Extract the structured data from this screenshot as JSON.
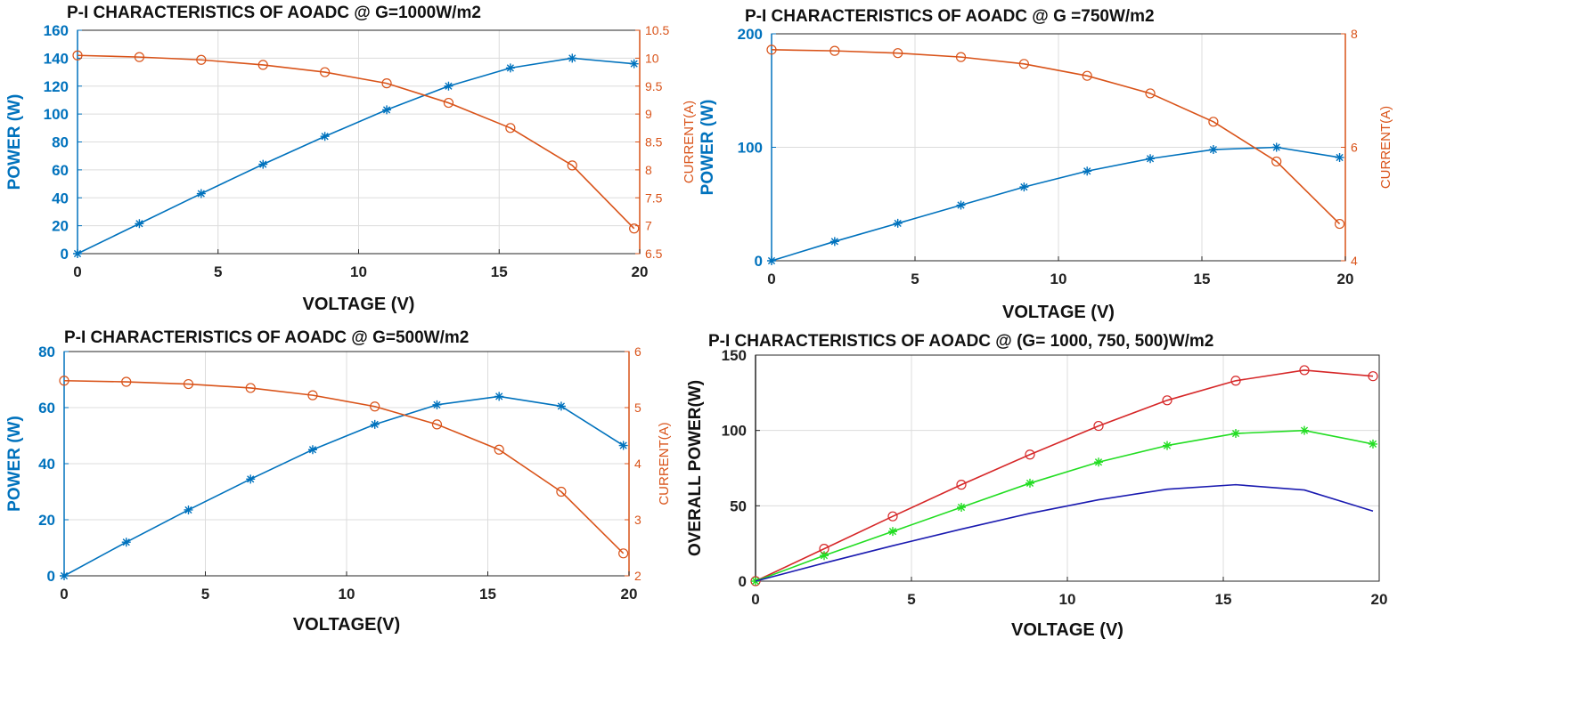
{
  "chart_data": [
    {
      "type": "line",
      "title": "P-I CHARACTERISTICS OF AOADC @ G=1000W/m2",
      "xlabel": "VOLTAGE (V)",
      "ylabel": "POWER (W)",
      "ylabel_right": "CURRENT(A)",
      "xlim": [
        0,
        20
      ],
      "ylim": [
        0,
        160
      ],
      "ylim_right": [
        6.5,
        10.5
      ],
      "xticks": [
        "0",
        "5",
        "10",
        "15",
        "20"
      ],
      "yticks": [
        "0",
        "20",
        "40",
        "60",
        "80",
        "100",
        "120",
        "140",
        "160"
      ],
      "yticks_right": [
        "6.5",
        "7",
        "7.5",
        "8",
        "8.5",
        "9",
        "9.5",
        "10",
        "10.5"
      ],
      "grid": true,
      "x": [
        0,
        2.2,
        4.4,
        6.6,
        8.8,
        11.0,
        13.2,
        15.4,
        17.6,
        19.8
      ],
      "series": [
        {
          "axis": "left",
          "color": "#0072bd",
          "marker": "star",
          "values": [
            0,
            21.5,
            43,
            64,
            84,
            103,
            120,
            133,
            140,
            136
          ]
        },
        {
          "axis": "right",
          "color": "#d95319",
          "marker": "circle",
          "values": [
            10.05,
            10.02,
            9.97,
            9.88,
            9.75,
            9.55,
            9.2,
            8.75,
            8.08,
            6.95
          ]
        }
      ]
    },
    {
      "type": "line",
      "title": "P-I CHARACTERISTICS OF AOADC @ G =750W/m2",
      "xlabel": "VOLTAGE (V)",
      "ylabel": "POWER (W)",
      "ylabel_right": "CURRENT(A)",
      "xlim": [
        0,
        20
      ],
      "ylim": [
        0,
        200
      ],
      "ylim_right": [
        4,
        8
      ],
      "xticks": [
        "0",
        "5",
        "10",
        "15",
        "20"
      ],
      "yticks": [
        "0",
        "100",
        "200"
      ],
      "yticks_right": [
        "4",
        "6",
        "8"
      ],
      "grid": true,
      "x": [
        0,
        2.2,
        4.4,
        6.6,
        8.8,
        11.0,
        13.2,
        15.4,
        17.6,
        19.8
      ],
      "series": [
        {
          "axis": "left",
          "color": "#0072bd",
          "marker": "star",
          "values": [
            0,
            17,
            33,
            49,
            65,
            79,
            90,
            98,
            100,
            91
          ]
        },
        {
          "axis": "right",
          "color": "#d95319",
          "marker": "circle",
          "values": [
            7.72,
            7.7,
            7.66,
            7.59,
            7.47,
            7.26,
            6.95,
            6.45,
            5.75,
            4.65
          ]
        }
      ]
    },
    {
      "type": "line",
      "title": "P-I CHARACTERISTICS OF AOADC @ G=500W/m2",
      "xlabel": "VOLTAGE(V)",
      "ylabel": "POWER (W)",
      "ylabel_right": "CURRENT(A)",
      "xlim": [
        0,
        20
      ],
      "ylim": [
        0,
        80
      ],
      "ylim_right": [
        2,
        6
      ],
      "xticks": [
        "0",
        "5",
        "10",
        "15",
        "20"
      ],
      "yticks": [
        "0",
        "20",
        "40",
        "60",
        "80"
      ],
      "yticks_right": [
        "2",
        "3",
        "4",
        "5",
        "6"
      ],
      "grid": true,
      "x": [
        0,
        2.2,
        4.4,
        6.6,
        8.8,
        11.0,
        13.2,
        15.4,
        17.6,
        19.8
      ],
      "series": [
        {
          "axis": "left",
          "color": "#0072bd",
          "marker": "star",
          "values": [
            0,
            12,
            23.5,
            34.5,
            45,
            54,
            61,
            64,
            60.5,
            46.5
          ]
        },
        {
          "axis": "right",
          "color": "#d95319",
          "marker": "circle",
          "values": [
            5.48,
            5.46,
            5.42,
            5.35,
            5.22,
            5.02,
            4.7,
            4.25,
            3.5,
            2.4
          ]
        }
      ]
    },
    {
      "type": "line",
      "title": "P-I CHARACTERISTICS OF AOADC @ (G= 1000, 750, 500)W/m2",
      "xlabel": "VOLTAGE (V)",
      "ylabel": "OVERALL POWER(W)",
      "xlim": [
        0,
        20
      ],
      "ylim": [
        0,
        150
      ],
      "xticks": [
        "0",
        "5",
        "10",
        "15",
        "20"
      ],
      "yticks": [
        "0",
        "50",
        "100",
        "150"
      ],
      "grid": true,
      "x": [
        0,
        2.2,
        4.4,
        6.6,
        8.8,
        11.0,
        13.2,
        15.4,
        17.6,
        19.8
      ],
      "series": [
        {
          "axis": "left",
          "color": "#d62728",
          "marker": "circle",
          "values": [
            0,
            21.5,
            43,
            64,
            84,
            103,
            120,
            133,
            140,
            136
          ]
        },
        {
          "axis": "left",
          "color": "#22dd22",
          "marker": "star",
          "values": [
            0,
            17,
            33,
            49,
            65,
            79,
            90,
            98,
            100,
            91
          ]
        },
        {
          "axis": "left",
          "color": "#1a1ab0",
          "marker": "none",
          "values": [
            0,
            12,
            23.5,
            34.5,
            45,
            54,
            61,
            64,
            60.5,
            46.5
          ]
        }
      ]
    }
  ]
}
